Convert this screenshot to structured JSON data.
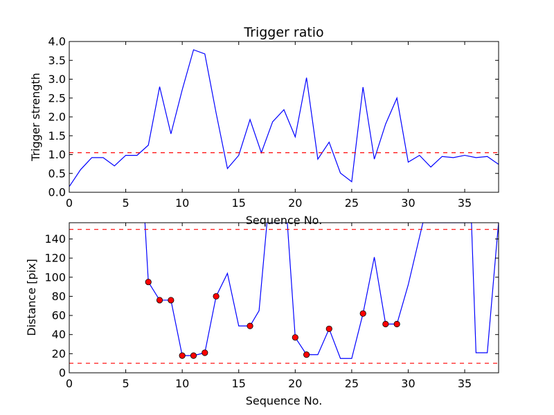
{
  "chart_data": [
    {
      "type": "line",
      "title": "Trigger ratio",
      "xlabel": "Sequence No.",
      "ylabel": "Trigger strength",
      "xlim": [
        0,
        38
      ],
      "ylim": [
        0.0,
        4.0
      ],
      "xticks": [
        "0",
        "5",
        "10",
        "15",
        "20",
        "25",
        "30",
        "35"
      ],
      "yticks": [
        "0.0",
        "0.5",
        "1.0",
        "1.5",
        "2.0",
        "2.5",
        "3.0",
        "3.5",
        "4.0"
      ],
      "grid": false,
      "line_color": "#0000ff",
      "threshold_color": "#ff0000",
      "thresholds": [
        1.05
      ],
      "x": [
        0,
        1,
        2,
        3,
        4,
        5,
        6,
        7,
        8,
        9,
        10,
        11,
        12,
        13,
        14,
        15,
        16,
        17,
        18,
        19,
        20,
        21,
        22,
        23,
        24,
        25,
        26,
        27,
        28,
        29,
        30,
        31,
        32,
        33,
        34,
        35,
        36,
        37,
        38
      ],
      "y": [
        0.15,
        0.6,
        0.92,
        0.92,
        0.7,
        0.98,
        0.98,
        1.25,
        2.8,
        1.55,
        2.72,
        3.78,
        3.67,
        2.1,
        0.63,
        0.98,
        1.93,
        1.05,
        1.87,
        2.19,
        1.47,
        3.04,
        0.88,
        1.33,
        0.51,
        0.28,
        2.79,
        0.88,
        1.81,
        2.5,
        0.8,
        0.98,
        0.67,
        0.95,
        0.92,
        0.98,
        0.92,
        0.95,
        0.74
      ]
    },
    {
      "type": "line",
      "title": "",
      "xlabel": "Sequence No.",
      "ylabel": "Distance [pix]",
      "xlim": [
        0,
        38
      ],
      "ylim": [
        0,
        157
      ],
      "xticks": [
        "0",
        "5",
        "10",
        "15",
        "20",
        "25",
        "30",
        "35"
      ],
      "yticks": [
        "0",
        "20",
        "40",
        "60",
        "80",
        "100",
        "120",
        "140"
      ],
      "grid": false,
      "line_color": "#0000ff",
      "marker_color": "#ff0000",
      "threshold_color": "#ff0000",
      "thresholds": [
        150,
        10
      ],
      "x": [
        6.7,
        7,
        8,
        9,
        10,
        11,
        12,
        13,
        14,
        15,
        16,
        16.8,
        17.5,
        19.3,
        20,
        21,
        22,
        23,
        24,
        25,
        26,
        27,
        28,
        29,
        30,
        31,
        31.3,
        35.6,
        36,
        37,
        37.8,
        38
      ],
      "y": [
        157,
        95,
        76,
        76,
        18,
        18,
        21,
        80,
        104,
        49,
        49,
        65,
        157,
        157,
        37,
        19,
        19,
        46,
        15,
        15,
        62,
        121,
        51,
        51,
        92,
        142,
        157,
        157,
        21,
        21,
        131,
        157
      ],
      "markers": [
        {
          "x": 7,
          "y": 95
        },
        {
          "x": 8,
          "y": 76
        },
        {
          "x": 9,
          "y": 76
        },
        {
          "x": 10,
          "y": 18
        },
        {
          "x": 11,
          "y": 18
        },
        {
          "x": 12,
          "y": 21
        },
        {
          "x": 13,
          "y": 80
        },
        {
          "x": 16,
          "y": 49
        },
        {
          "x": 20,
          "y": 37
        },
        {
          "x": 21,
          "y": 19
        },
        {
          "x": 23,
          "y": 46
        },
        {
          "x": 26,
          "y": 62
        },
        {
          "x": 28,
          "y": 51
        },
        {
          "x": 29,
          "y": 51
        }
      ]
    }
  ]
}
